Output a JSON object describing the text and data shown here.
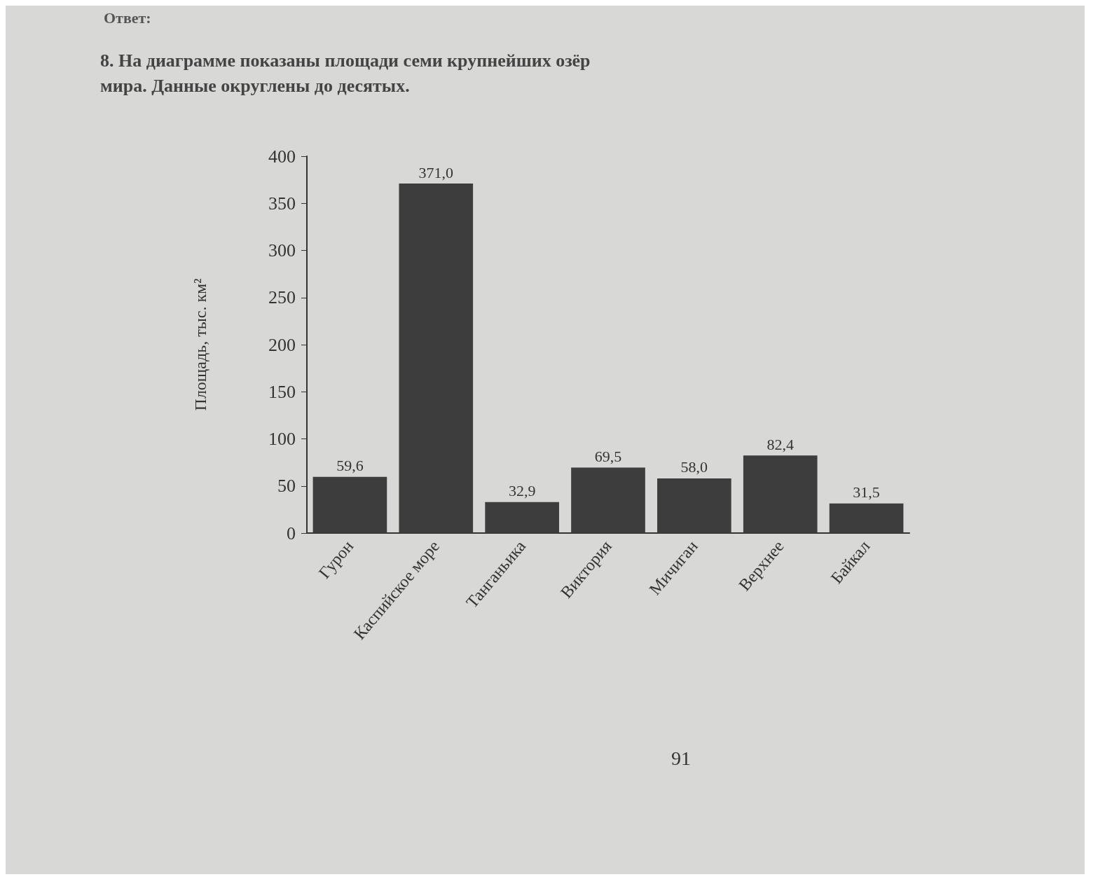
{
  "chart_data": {
    "type": "bar",
    "title": "8. На диаграмме показаны площади семи крупнейших озёр мира. Данные округлены до десятых.",
    "ylabel": "Площадь, тыс. км²",
    "categories": [
      "Гурон",
      "Каспийское море",
      "Танганьика",
      "Виктория",
      "Мичиган",
      "Верхнее",
      "Байкал"
    ],
    "values": [
      59.6,
      371.0,
      32.9,
      69.5,
      58.0,
      82.4,
      31.5
    ],
    "value_labels": [
      "59,6",
      "371,0",
      "32,9",
      "69,5",
      "58,0",
      "82,4",
      "31,5"
    ],
    "color": "#3d3d3d",
    "ylim": [
      0,
      400
    ],
    "yticks": [
      0,
      50,
      100,
      150,
      200,
      250,
      300,
      350,
      400
    ],
    "grid": false,
    "annotations": [
      "Ответ:",
      "91"
    ]
  }
}
